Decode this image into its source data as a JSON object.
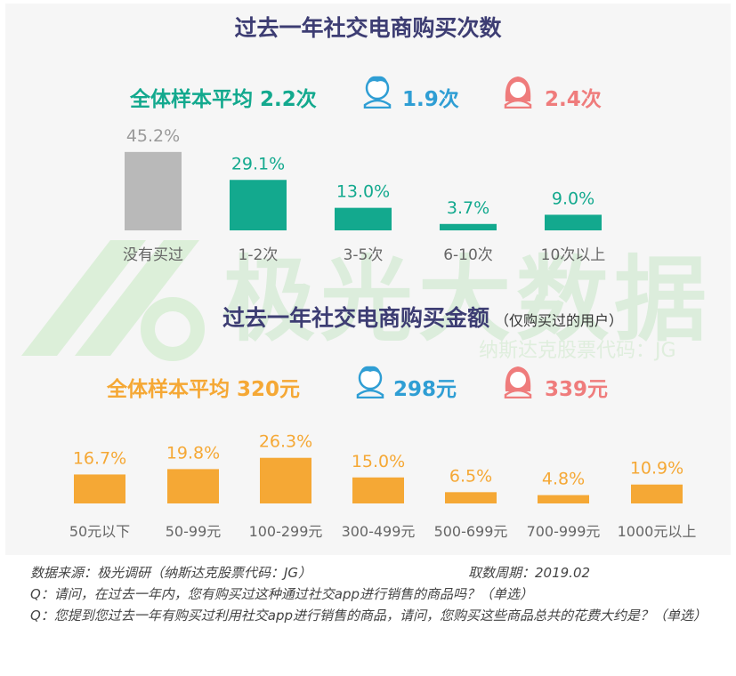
{
  "section1": {
    "title": "过去一年社交电商购买次数",
    "overall_avg": "全体样本平均 2.2次",
    "male_value": "1.9次",
    "female_value": "2.4次"
  },
  "section2": {
    "title": "过去一年社交电商购买金额",
    "title_note": "（仅购买过的用户）",
    "overall_avg": "全体样本平均 320元",
    "male_value": "298元",
    "female_value": "339元"
  },
  "watermark": {
    "brand": "极光大数据",
    "stock_code": "纳斯达克股票代码：JG"
  },
  "colors": {
    "title": "#3d3d73",
    "teal": "#13a98e",
    "gray_bar": "#b9b9b9",
    "orange": "#f5a835",
    "male": "#2f9ed4",
    "female": "#ef7c7c"
  },
  "chart_data": [
    {
      "type": "bar",
      "categories": [
        "没有买过",
        "1-2次",
        "3-5次",
        "6-10次",
        "10次以上"
      ],
      "values": [
        45.2,
        29.1,
        13.0,
        3.7,
        9.0
      ],
      "labels": [
        "45.2%",
        "29.1%",
        "13.0%",
        "3.7%",
        "9.0%"
      ],
      "title": "过去一年社交电商购买次数",
      "unit": "%"
    },
    {
      "type": "bar",
      "categories": [
        "50元以下",
        "50-99元",
        "100-299元",
        "300-499元",
        "500-699元",
        "700-999元",
        "1000元以上"
      ],
      "values": [
        16.7,
        19.8,
        26.3,
        15.0,
        6.5,
        4.8,
        10.9
      ],
      "labels": [
        "16.7%",
        "19.8%",
        "26.3%",
        "15.0%",
        "6.5%",
        "4.8%",
        "10.9%"
      ],
      "title": "过去一年社交电商购买金额",
      "unit": "%"
    }
  ],
  "footer": {
    "source": "数据来源：极光调研（纳斯达克股票代码：JG）",
    "period": "取数周期：2019.02",
    "q1": "Q：请问，在过去一年内，您有购买过这种通过社交app进行销售的商品吗？（单选）",
    "q2": "Q：您提到您过去一年有购买过利用社交app进行销售的商品，请问，您购买这些商品总共的花费大约是？（单选）"
  }
}
